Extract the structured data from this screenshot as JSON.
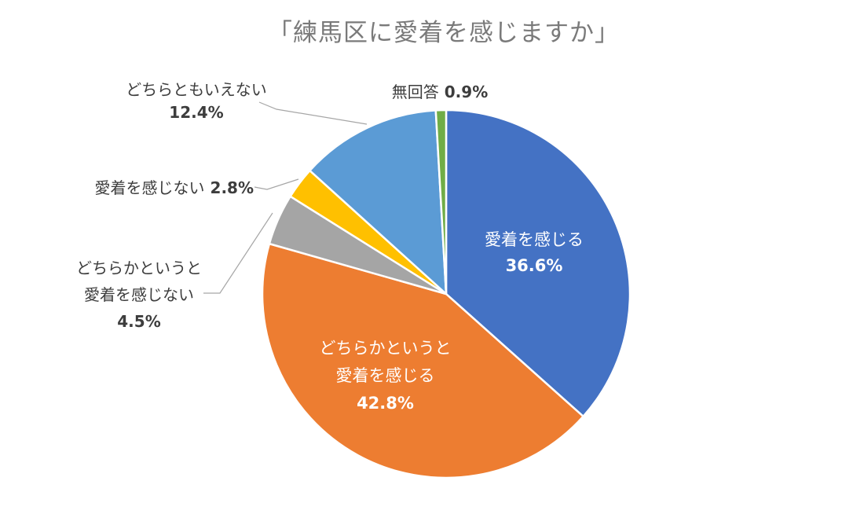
{
  "chart_data": {
    "type": "pie",
    "title": "「練馬区に愛着を感じますか」",
    "start_angle_deg": 0,
    "direction": "clockwise",
    "unit": "%",
    "legend": "none",
    "segments": [
      {
        "label": "愛着を感じる",
        "value_pct": 36.6,
        "display": "36.6%",
        "color": "#4472C4",
        "label_placement": "inside"
      },
      {
        "label": "どちらかというと愛着を感じる",
        "lines": [
          "どちらかというと",
          "愛着を感じる"
        ],
        "value_pct": 42.8,
        "display": "42.8%",
        "color": "#ED7D31",
        "label_placement": "inside"
      },
      {
        "label": "どちらかというと愛着を感じない",
        "lines": [
          "どちらかというと",
          "愛着を感じない"
        ],
        "value_pct": 4.5,
        "display": "4.5%",
        "color": "#A5A5A5",
        "label_placement": "outside"
      },
      {
        "label": "愛着を感じない",
        "value_pct": 2.8,
        "display": "2.8%",
        "color": "#FFC000",
        "label_placement": "outside"
      },
      {
        "label": "どちらともいえない",
        "value_pct": 12.4,
        "display": "12.4%",
        "color": "#5B9BD5",
        "label_placement": "outside"
      },
      {
        "label": "無回答",
        "value_pct": 0.9,
        "display": "0.9%",
        "color": "#70AD47",
        "label_placement": "outside"
      }
    ],
    "styles": {
      "background": "#ffffff",
      "title_color": "#7a7a7a",
      "outside_label_color": "#3d3d3d",
      "inside_label_color": "#ffffff",
      "leader_line_color": "#a6a6a6",
      "slice_border_color": "#ffffff"
    }
  }
}
